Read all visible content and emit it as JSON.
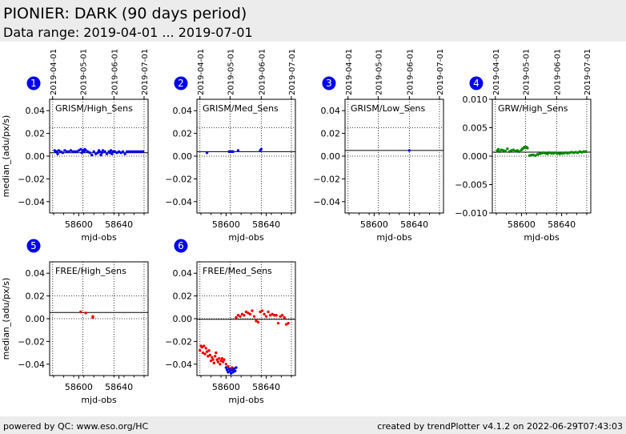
{
  "header": {
    "title": "PIONIER: DARK (90 days period)",
    "subtitle": "Data range: 2019-04-01 ... 2019-07-01"
  },
  "footer": {
    "left": "powered by QC: www.eso.org/HC",
    "right": "created by trendPlotter v4.1.2 on 2022-06-29T07:43:03"
  },
  "style": {
    "badge_color": "#0000ee",
    "hline_color": "#000000",
    "grid_color": "#000000"
  },
  "chart_data": [
    {
      "type": "scatter",
      "index": "1",
      "label": "GRISM/High_Sens",
      "ylabel": "median_(adu/px/s)",
      "xlabel": "mjd-obs",
      "xlim": [
        58571,
        58669
      ],
      "ylim": [
        -0.05,
        0.05
      ],
      "xticks": [
        58600,
        58640
      ],
      "yticks": [
        -0.04,
        -0.02,
        0.0,
        0.02,
        0.04
      ],
      "ytick_labels": [
        "−0.04",
        "−0.02",
        "0.00",
        "0.02",
        "0.04"
      ],
      "date_ticks": [
        {
          "mjd": 58574,
          "label": "2019-04-01"
        },
        {
          "mjd": 58604,
          "label": "2019-05-01"
        },
        {
          "mjd": 58635,
          "label": "2019-06-01"
        },
        {
          "mjd": 58665,
          "label": "2019-07-01"
        }
      ],
      "hlines": [
        0.003
      ],
      "dotted_hlines": [
        0.025,
        0.0
      ],
      "series": [
        {
          "color": "#0000ee",
          "x": [
            58576,
            58577,
            58578,
            58579,
            58580,
            58582,
            58584,
            58586,
            58588,
            58590,
            58592,
            58594,
            58596,
            58598,
            58600,
            58602,
            58603,
            58604,
            58605,
            58606,
            58607,
            58609,
            58611,
            58613,
            58615,
            58617,
            58619,
            58620,
            58621,
            58622,
            58623,
            58624,
            58626,
            58628,
            58630,
            58631,
            58632,
            58633,
            58634,
            58636,
            58638,
            58640,
            58642,
            58644,
            58646,
            58648,
            58650,
            58652,
            58654,
            58656,
            58658,
            58660,
            58662,
            58664
          ],
          "y": [
            0.005,
            0.004,
            0.004,
            0.002,
            0.005,
            0.004,
            0.003,
            0.005,
            0.004,
            0.004,
            0.005,
            0.004,
            0.004,
            0.004,
            0.005,
            0.006,
            0.003,
            0.005,
            0.004,
            0.006,
            0.005,
            0.004,
            0.003,
            0.001,
            0.004,
            0.002,
            0.003,
            0.005,
            0.004,
            0.001,
            0.003,
            0.005,
            0.004,
            0.002,
            0.004,
            0.003,
            0.005,
            0.002,
            0.004,
            0.004,
            0.003,
            0.004,
            0.003,
            0.004,
            0.002,
            0.004,
            0.004,
            0.004,
            0.004,
            0.004,
            0.004,
            0.004,
            0.004,
            0.004
          ]
        }
      ]
    },
    {
      "type": "scatter",
      "index": "2",
      "label": "GRISM/Med_Sens",
      "ylabel": "",
      "xlabel": "mjd-obs",
      "xlim": [
        58571,
        58669
      ],
      "ylim": [
        -0.05,
        0.05
      ],
      "xticks": [
        58600,
        58640
      ],
      "yticks": [
        -0.04,
        -0.02,
        0.0,
        0.02,
        0.04
      ],
      "ytick_labels": [
        "−0.04",
        "−0.02",
        "0.00",
        "0.02",
        "0.04"
      ],
      "date_ticks": [
        {
          "mjd": 58574,
          "label": "2019-04-01"
        },
        {
          "mjd": 58604,
          "label": "2019-05-01"
        },
        {
          "mjd": 58635,
          "label": "2019-06-01"
        },
        {
          "mjd": 58665,
          "label": "2019-07-01"
        }
      ],
      "hlines": [
        0.004
      ],
      "dotted_hlines": [
        0.025,
        0.0
      ],
      "series": [
        {
          "color": "#0000ee",
          "x": [
            58581,
            58603,
            58605,
            58606,
            58607,
            58612,
            58634,
            58635
          ],
          "y": [
            0.003,
            0.004,
            0.004,
            0.004,
            0.004,
            0.005,
            0.005,
            0.006
          ]
        }
      ]
    },
    {
      "type": "scatter",
      "index": "3",
      "label": "GRISM/Low_Sens",
      "ylabel": "",
      "xlabel": "mjd-obs",
      "xlim": [
        58571,
        58669
      ],
      "ylim": [
        -0.05,
        0.05
      ],
      "xticks": [
        58600,
        58640
      ],
      "yticks": [
        -0.04,
        -0.02,
        0.0,
        0.02,
        0.04
      ],
      "ytick_labels": [
        "−0.04",
        "−0.02",
        "0.00",
        "0.02",
        "0.04"
      ],
      "date_ticks": [
        {
          "mjd": 58574,
          "label": "2019-04-01"
        },
        {
          "mjd": 58604,
          "label": "2019-05-01"
        },
        {
          "mjd": 58635,
          "label": "2019-06-01"
        },
        {
          "mjd": 58665,
          "label": "2019-07-01"
        }
      ],
      "hlines": [
        0.005
      ],
      "dotted_hlines": [
        0.025,
        0.0
      ],
      "series": [
        {
          "color": "#0000ee",
          "x": [
            58635
          ],
          "y": [
            0.005
          ]
        }
      ]
    },
    {
      "type": "scatter",
      "index": "4",
      "label": "GRW/High_Sens",
      "ylabel": "",
      "xlabel": "mjd-obs",
      "xlim": [
        58571,
        58669
      ],
      "ylim": [
        -0.01,
        0.01
      ],
      "xticks": [
        58600,
        58640
      ],
      "yticks": [
        -0.01,
        -0.005,
        0.0,
        0.005,
        0.01
      ],
      "ytick_labels": [
        "−0.010",
        "−0.005",
        "0.000",
        "0.005",
        "0.010"
      ],
      "date_ticks": [
        {
          "mjd": 58574,
          "label": "2019-04-01"
        },
        {
          "mjd": 58604,
          "label": "2019-05-01"
        },
        {
          "mjd": 58635,
          "label": "2019-06-01"
        },
        {
          "mjd": 58665,
          "label": "2019-07-01"
        }
      ],
      "hlines": [
        0.0007
      ],
      "dotted_hlines": [
        0.0
      ],
      "series": [
        {
          "color": "#008800",
          "x": [
            58576,
            58577,
            58578,
            58580,
            58582,
            58584,
            58586,
            58588,
            58590,
            58592,
            58594,
            58596,
            58598,
            58600,
            58601,
            58602,
            58603,
            58604,
            58605,
            58606,
            58608,
            58610,
            58612,
            58614,
            58616,
            58618,
            58620,
            58622,
            58624,
            58626,
            58628,
            58630,
            58632,
            58634,
            58636,
            58638,
            58640,
            58642,
            58644,
            58646,
            58648,
            58650,
            58652,
            58654,
            58656,
            58658,
            58660,
            58662,
            58664
          ],
          "y": [
            0.001,
            0.0012,
            0.0008,
            0.0011,
            0.001,
            0.0009,
            0.0013,
            0.0008,
            0.001,
            0.0011,
            0.0009,
            0.001,
            0.0008,
            0.0011,
            0.0013,
            0.0014,
            0.0016,
            0.0015,
            0.0016,
            0.0014,
            0.0001,
            0.0002,
            0.0002,
            0.0001,
            0.0003,
            0.0004,
            0.0005,
            0.0006,
            0.0005,
            0.0004,
            0.0006,
            0.0005,
            0.0005,
            0.0006,
            0.0005,
            0.0004,
            0.0005,
            0.0005,
            0.0006,
            0.0005,
            0.0006,
            0.0007,
            0.0006,
            0.0007,
            0.0006,
            0.0008,
            0.0007,
            0.0008,
            0.0008
          ]
        }
      ]
    },
    {
      "type": "scatter",
      "index": "5",
      "label": "FREE/High_Sens",
      "ylabel": "median_(adu/px/s)",
      "xlabel": "mjd-obs",
      "xlim": [
        58571,
        58669
      ],
      "ylim": [
        -0.05,
        0.05
      ],
      "xticks": [
        58600,
        58640
      ],
      "yticks": [
        -0.04,
        -0.02,
        0.0,
        0.02,
        0.04
      ],
      "ytick_labels": [
        "−0.04",
        "−0.02",
        "0.00",
        "0.02",
        "0.04"
      ],
      "date_ticks": [],
      "hlines": [
        0.0055
      ],
      "dotted_hlines": [
        0.02,
        0.0
      ],
      "series": [
        {
          "color": "#ee0000",
          "x": [
            58602,
            58607,
            58614,
            58614
          ],
          "y": [
            0.006,
            0.005,
            0.002,
            0.001
          ]
        }
      ]
    },
    {
      "type": "scatter",
      "index": "6",
      "label": "FREE/Med_Sens",
      "ylabel": "",
      "xlabel": "mjd-obs",
      "xlim": [
        58571,
        58669
      ],
      "ylim": [
        -0.05,
        0.05
      ],
      "xticks": [
        58600,
        58640
      ],
      "yticks": [
        -0.04,
        -0.02,
        0.0,
        0.02,
        0.04
      ],
      "ytick_labels": [
        "−0.04",
        "−0.02",
        "0.00",
        "0.02",
        "0.04"
      ],
      "date_ticks": [],
      "hlines": [
        -0.0005
      ],
      "dotted_hlines": [
        0.02,
        0.0
      ],
      "series": [
        {
          "color": "#ee0000",
          "x": [
            58574,
            58575,
            58576,
            58577,
            58578,
            58579,
            58580,
            58581,
            58582,
            58583,
            58584,
            58585,
            58586,
            58587,
            58588,
            58589,
            58590,
            58591,
            58592,
            58593,
            58594,
            58595,
            58596,
            58597,
            58598,
            58600,
            58602,
            58604,
            58606,
            58608,
            58610,
            58612,
            58614,
            58616,
            58618,
            58620,
            58622,
            58624,
            58626,
            58628,
            58630,
            58632,
            58634,
            58636,
            58638,
            58640,
            58642,
            58644,
            58646,
            58648,
            58650,
            58652,
            58654,
            58656,
            58658,
            58660,
            58662
          ],
          "y": [
            -0.028,
            -0.024,
            -0.025,
            -0.03,
            -0.024,
            -0.031,
            -0.026,
            -0.029,
            -0.033,
            -0.028,
            -0.032,
            -0.037,
            -0.034,
            -0.036,
            -0.039,
            -0.033,
            -0.03,
            -0.036,
            -0.038,
            -0.035,
            -0.04,
            -0.037,
            -0.035,
            -0.038,
            -0.036,
            -0.04,
            -0.042,
            -0.044,
            -0.043,
            -0.045,
            0.001,
            0.003,
            0.002,
            0.004,
            0.003,
            0.006,
            0.005,
            0.004,
            0.007,
            0.002,
            -0.002,
            -0.003,
            0.006,
            0.007,
            0.004,
            0.002,
            0.006,
            0.003,
            0.004,
            0.003,
            0.003,
            -0.004,
            0.002,
            0.003,
            0.001,
            -0.005,
            -0.004
          ]
        },
        {
          "color": "#0000ee",
          "x": [
            58600,
            58601,
            58602,
            58603,
            58604,
            58605,
            58606,
            58607,
            58608,
            58609,
            58610
          ],
          "y": [
            -0.043,
            -0.045,
            -0.047,
            -0.044,
            -0.046,
            -0.048,
            -0.045,
            -0.047,
            -0.044,
            -0.046,
            -0.043
          ]
        }
      ]
    }
  ]
}
